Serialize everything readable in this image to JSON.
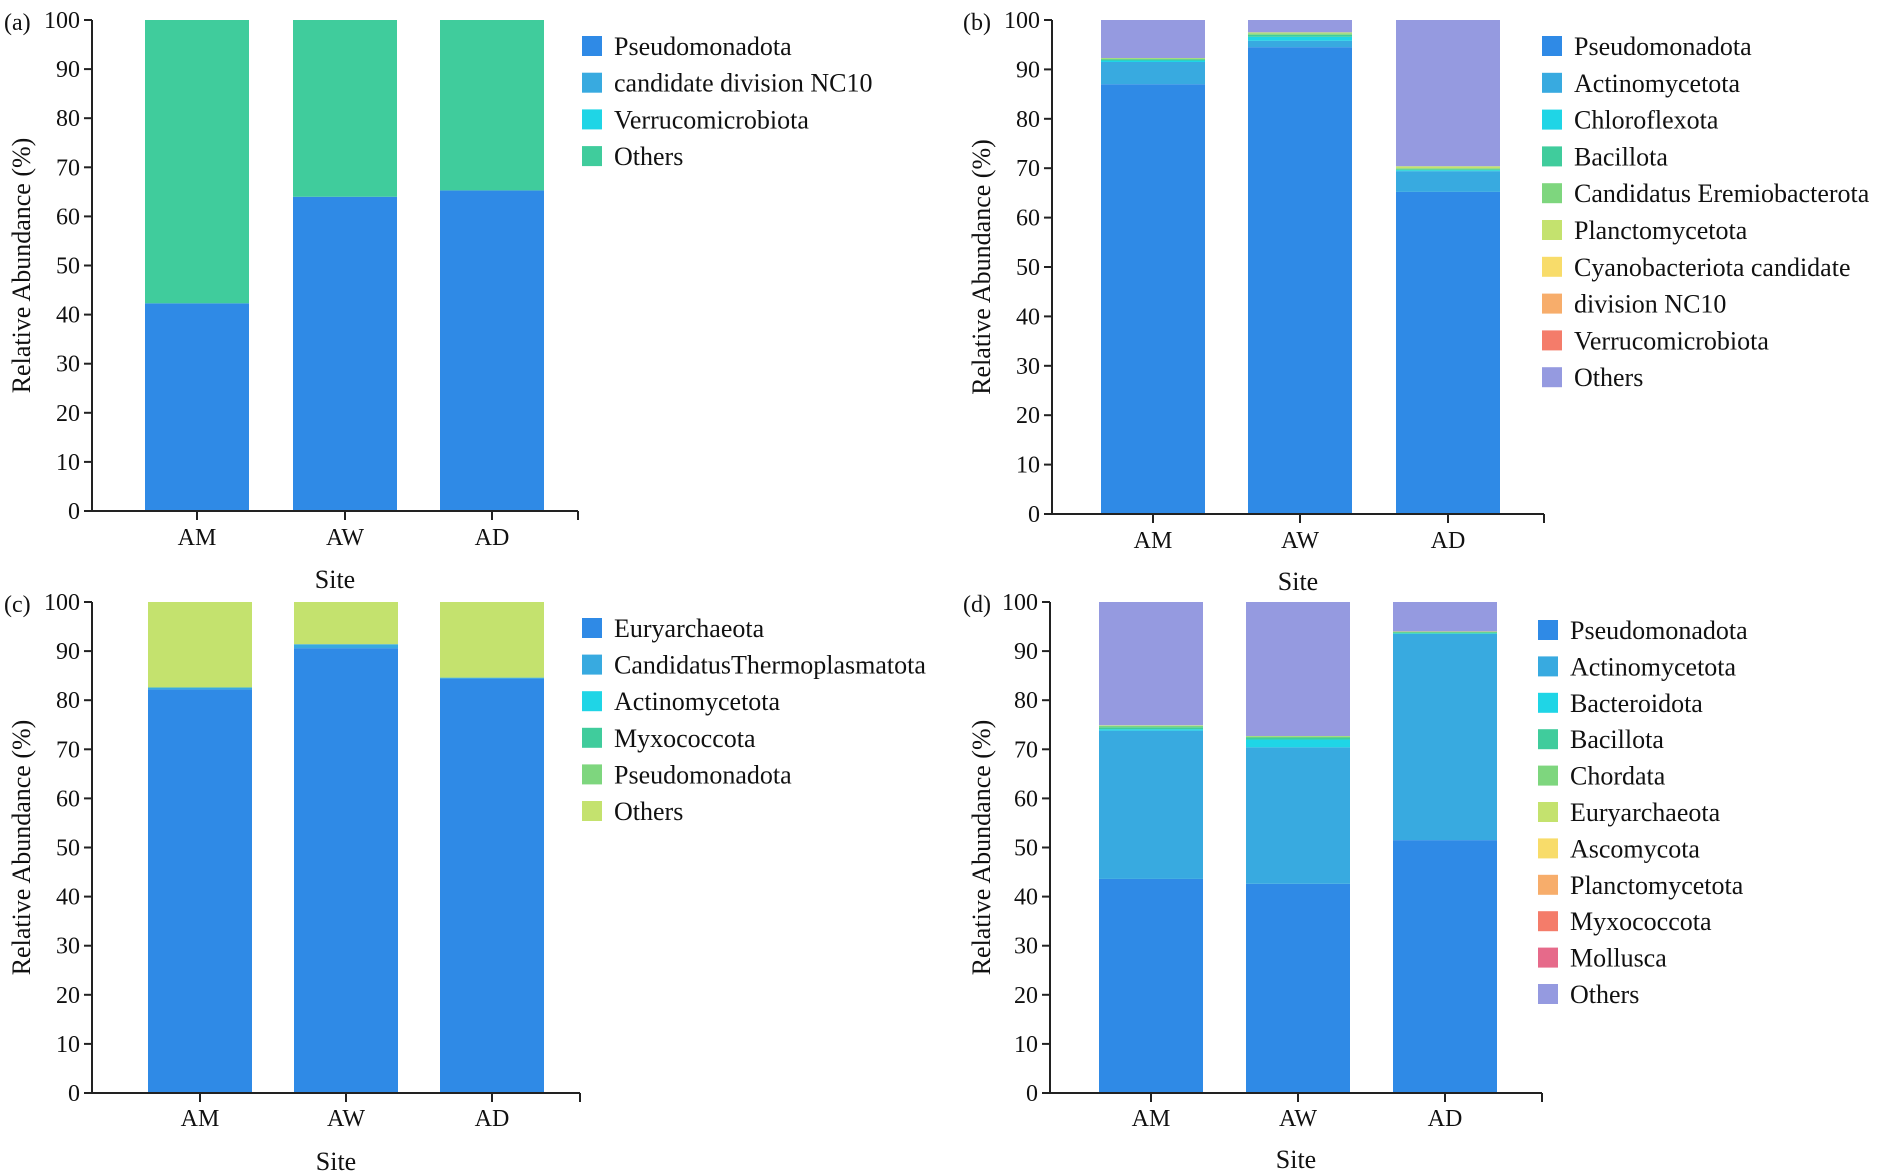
{
  "figure": {
    "panels": [
      "a",
      "b",
      "c",
      "d"
    ]
  },
  "chart_data": [
    {
      "id": "a",
      "panel_label": "(a)",
      "type": "bar",
      "stacked": true,
      "xlabel": "Site",
      "ylabel": "Relative Abundance (%)",
      "ylim": [
        0,
        100
      ],
      "yticks": [
        0,
        10,
        20,
        30,
        40,
        50,
        60,
        70,
        80,
        90,
        100
      ],
      "categories": [
        "AM",
        "AW",
        "AD"
      ],
      "series": [
        {
          "name": "Pseudomonadota",
          "color": "#2f8ae6",
          "values": [
            42.3,
            64.0,
            65.3
          ]
        },
        {
          "name": "candidate division NC10",
          "color": "#38aae0",
          "values": [
            0.0,
            0.0,
            0.0
          ]
        },
        {
          "name": "Verrucomicrobiota",
          "color": "#1fd5e6",
          "values": [
            0.0,
            0.0,
            0.0
          ]
        },
        {
          "name": "Others",
          "color": "#40cc9c",
          "values": [
            57.7,
            36.0,
            34.7
          ]
        }
      ]
    },
    {
      "id": "b",
      "panel_label": "(b)",
      "type": "bar",
      "stacked": true,
      "xlabel": "Site",
      "ylabel": "Relative Abundance (%)",
      "ylim": [
        0,
        100
      ],
      "yticks": [
        0,
        10,
        20,
        30,
        40,
        50,
        60,
        70,
        80,
        90,
        100
      ],
      "categories": [
        "AM",
        "AW",
        "AD"
      ],
      "series": [
        {
          "name": "Pseudomonadota",
          "color": "#2f8ae6",
          "values": [
            87.0,
            94.5,
            65.2
          ]
        },
        {
          "name": "Actinomycetota",
          "color": "#38aae0",
          "values": [
            4.5,
            1.3,
            4.2
          ]
        },
        {
          "name": "Chloroflexota",
          "color": "#1fd5e6",
          "values": [
            0.3,
            0.8,
            0.2
          ]
        },
        {
          "name": "Bacillota",
          "color": "#40cc9c",
          "values": [
            0.2,
            0.4,
            0.2
          ]
        },
        {
          "name": "Candidatus Eremiobacterota",
          "color": "#7ed67e",
          "values": [
            0.2,
            0.3,
            0.2
          ]
        },
        {
          "name": "Planctomycetota",
          "color": "#c4e26e",
          "values": [
            0.1,
            0.2,
            0.4
          ]
        },
        {
          "name": "Cyanobacteriota candidate",
          "color": "#f8dc6a",
          "values": [
            0.0,
            0.0,
            0.0
          ]
        },
        {
          "name": "division NC10",
          "color": "#f7ad6b",
          "values": [
            0.0,
            0.0,
            0.0
          ]
        },
        {
          "name": "Verrucomicrobiota",
          "color": "#f47c6a",
          "values": [
            0.0,
            0.0,
            0.0
          ]
        },
        {
          "name": "Others",
          "color": "#959ae0",
          "values": [
            7.7,
            2.5,
            29.6
          ]
        }
      ]
    },
    {
      "id": "c",
      "panel_label": "(c)",
      "type": "bar",
      "stacked": true,
      "xlabel": "Site",
      "ylabel": "Relative Abundance (%)",
      "ylim": [
        0,
        100
      ],
      "yticks": [
        0,
        10,
        20,
        30,
        40,
        50,
        60,
        70,
        80,
        90,
        100
      ],
      "categories": [
        "AM",
        "AW",
        "AD"
      ],
      "series": [
        {
          "name": "Euryarchaeota",
          "color": "#2f8ae6",
          "values": [
            82.2,
            90.6,
            84.4
          ]
        },
        {
          "name": "CandidatusThermoplasmatota",
          "color": "#38aae0",
          "values": [
            0.4,
            0.8,
            0.2
          ]
        },
        {
          "name": "Actinomycetota",
          "color": "#1fd5e6",
          "values": [
            0.0,
            0.0,
            0.0
          ]
        },
        {
          "name": "Myxococcota",
          "color": "#40cc9c",
          "values": [
            0.0,
            0.0,
            0.0
          ]
        },
        {
          "name": "Pseudomonadota",
          "color": "#7ed67e",
          "values": [
            0.0,
            0.0,
            0.0
          ]
        },
        {
          "name": "Others",
          "color": "#c4e26e",
          "values": [
            17.4,
            8.6,
            15.4
          ]
        }
      ]
    },
    {
      "id": "d",
      "panel_label": "(d)",
      "type": "bar",
      "stacked": true,
      "xlabel": "Site",
      "ylabel": "Relative Abundance (%)",
      "ylim": [
        0,
        100
      ],
      "yticks": [
        0,
        10,
        20,
        30,
        40,
        50,
        60,
        70,
        80,
        90,
        100
      ],
      "categories": [
        "AM",
        "AW",
        "AD"
      ],
      "series": [
        {
          "name": "Pseudomonadota",
          "color": "#2f8ae6",
          "values": [
            43.6,
            42.6,
            51.5
          ]
        },
        {
          "name": "Actinomycetota",
          "color": "#38aae0",
          "values": [
            30.2,
            27.8,
            42.0
          ]
        },
        {
          "name": "Bacteroidota",
          "color": "#1fd5e6",
          "values": [
            0.3,
            1.6,
            0.1
          ]
        },
        {
          "name": "Bacillota",
          "color": "#40cc9c",
          "values": [
            0.4,
            0.4,
            0.2
          ]
        },
        {
          "name": "Chordata",
          "color": "#7ed67e",
          "values": [
            0.3,
            0.2,
            0.1
          ]
        },
        {
          "name": "Euryarchaeota",
          "color": "#c4e26e",
          "values": [
            0.1,
            0.1,
            0.1
          ]
        },
        {
          "name": "Ascomycota",
          "color": "#f8dc6a",
          "values": [
            0.0,
            0.0,
            0.0
          ]
        },
        {
          "name": "Planctomycetota",
          "color": "#f7ad6b",
          "values": [
            0.0,
            0.0,
            0.0
          ]
        },
        {
          "name": "Myxococcota",
          "color": "#f47c6a",
          "values": [
            0.0,
            0.0,
            0.0
          ]
        },
        {
          "name": "Mollusca",
          "color": "#e66a8a",
          "values": [
            0.0,
            0.0,
            0.0
          ]
        },
        {
          "name": "Others",
          "color": "#959ae0",
          "values": [
            25.1,
            27.3,
            6.0
          ]
        }
      ]
    }
  ]
}
